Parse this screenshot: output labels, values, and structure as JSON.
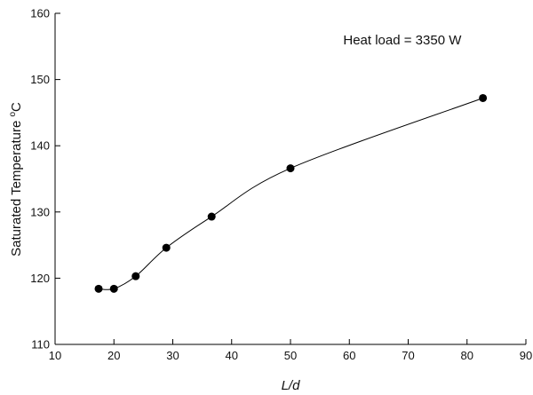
{
  "chart_data": {
    "type": "line",
    "xlabel": "L/d",
    "ylabel": "Saturated Temperature °C",
    "ylabel_parts": [
      "Saturated Temperature ",
      "o",
      "C"
    ],
    "xlim": [
      10,
      90
    ],
    "ylim": [
      110,
      160
    ],
    "xticks": [
      10,
      20,
      30,
      40,
      50,
      60,
      70,
      80,
      90
    ],
    "yticks": [
      110,
      120,
      130,
      140,
      150,
      160
    ],
    "grid": false,
    "annotations": [
      {
        "text": "Heat load = 3350 W",
        "x": 69,
        "y": 156
      }
    ],
    "series": [
      {
        "marker": "filled-circle",
        "line": "smooth",
        "color": "#000000",
        "x": [
          17.4,
          20.0,
          23.7,
          28.9,
          36.6,
          50.0,
          82.7
        ],
        "y": [
          118.4,
          118.4,
          120.3,
          124.6,
          129.3,
          136.6,
          147.2
        ]
      }
    ]
  }
}
